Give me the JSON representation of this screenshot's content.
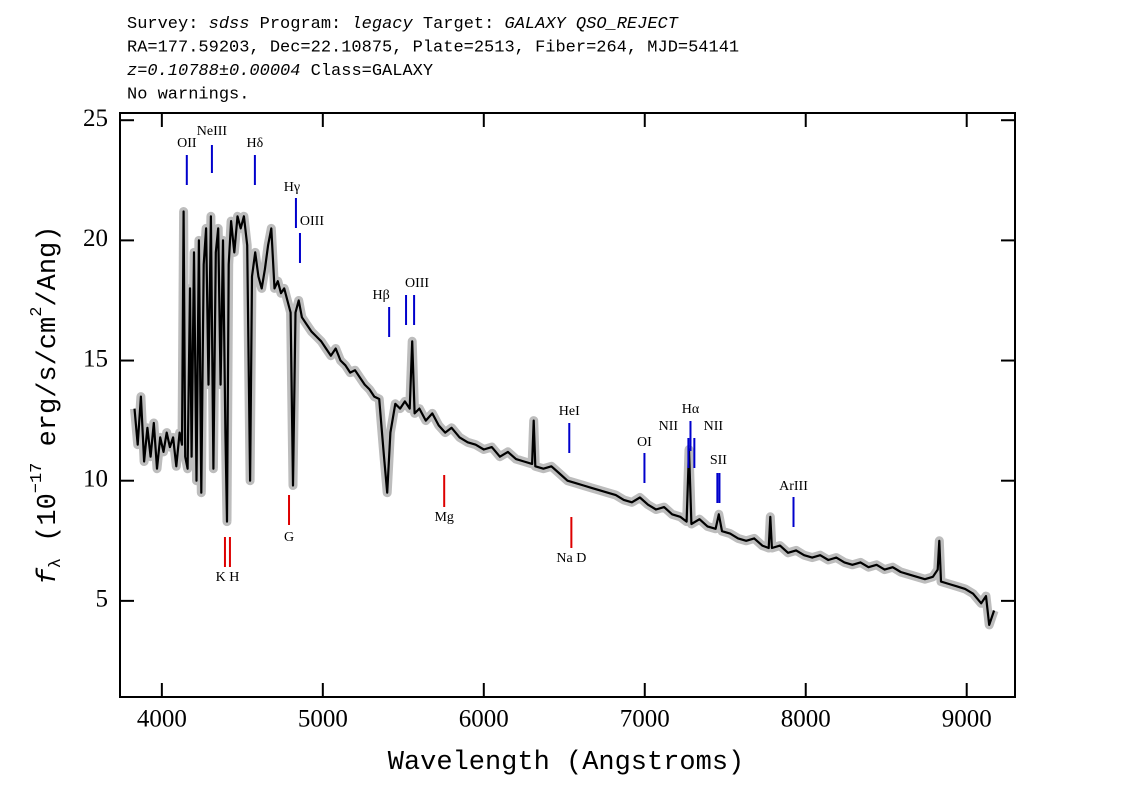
{
  "chart_data": {
    "type": "line",
    "header": [
      [
        {
          "text": "Survey: "
        },
        {
          "text": "sdss",
          "italic": true
        },
        {
          "text": " Program: "
        },
        {
          "text": "legacy",
          "italic": true
        },
        {
          "text": " Target: "
        },
        {
          "text": "GALAXY QSO_REJECT",
          "italic": true
        }
      ],
      [
        {
          "text": "RA=177.59203, Dec=22.10875, Plate=2513, Fiber=264, MJD=54141"
        }
      ],
      [
        {
          "text": "z=0.10788±0.00004",
          "italic": true
        },
        {
          "text": " Class=GALAXY"
        }
      ],
      [
        {
          "text": "No warnings."
        }
      ]
    ],
    "xlabel": "Wavelength (Angstroms)",
    "ylabel": [
      {
        "text": "f",
        "italic": true
      },
      {
        "text": "λ",
        "sub": true
      },
      {
        "text": " (10"
      },
      {
        "text": "−17",
        "sup": true
      },
      {
        "text": " erg/s/cm"
      },
      {
        "text": "2",
        "sup": true
      },
      {
        "text": "/Ang)"
      }
    ],
    "x": [
      3830,
      3850,
      3870,
      3890,
      3910,
      3930,
      3950,
      3970,
      3990,
      4010,
      4030,
      4050,
      4070,
      4090,
      4110,
      4125,
      4135,
      4145,
      4160,
      4175,
      4185,
      4200,
      4215,
      4230,
      4245,
      4260,
      4275,
      4290,
      4305,
      4320,
      4335,
      4350,
      4365,
      4380,
      4395,
      4405,
      4415,
      4430,
      4450,
      4470,
      4490,
      4510,
      4530,
      4548,
      4560,
      4580,
      4600,
      4620,
      4640,
      4660,
      4680,
      4700,
      4720,
      4740,
      4760,
      4780,
      4800,
      4815,
      4830,
      4850,
      4870,
      4900,
      4930,
      4960,
      4990,
      5020,
      5050,
      5080,
      5110,
      5140,
      5170,
      5200,
      5230,
      5260,
      5290,
      5320,
      5350,
      5380,
      5400,
      5420,
      5450,
      5480,
      5510,
      5540,
      5555,
      5570,
      5600,
      5640,
      5680,
      5720,
      5760,
      5800,
      5850,
      5900,
      5950,
      6000,
      6050,
      6100,
      6150,
      6200,
      6250,
      6300,
      6310,
      6320,
      6370,
      6420,
      6470,
      6520,
      6570,
      6620,
      6670,
      6720,
      6770,
      6820,
      6870,
      6920,
      6970,
      7020,
      7070,
      7120,
      7170,
      7220,
      7260,
      7275,
      7290,
      7340,
      7390,
      7440,
      7460,
      7480,
      7530,
      7580,
      7630,
      7680,
      7730,
      7770,
      7780,
      7790,
      7840,
      7890,
      7940,
      7990,
      8040,
      8090,
      8140,
      8190,
      8240,
      8290,
      8340,
      8390,
      8440,
      8490,
      8540,
      8590,
      8640,
      8690,
      8740,
      8790,
      8820,
      8830,
      8840,
      8890,
      8940,
      8990,
      9040,
      9090,
      9120,
      9140,
      9170
    ],
    "values": [
      13.0,
      11.5,
      13.5,
      10.8,
      12.2,
      11.0,
      12.4,
      10.5,
      11.8,
      11.2,
      12.0,
      11.4,
      11.8,
      10.6,
      12.0,
      11.5,
      21.2,
      11.0,
      10.5,
      18.0,
      11.0,
      19.5,
      10.0,
      20.0,
      9.5,
      19.0,
      20.5,
      14.0,
      21.0,
      10.5,
      19.5,
      20.5,
      14.0,
      20.0,
      12.0,
      8.3,
      19.0,
      20.8,
      19.5,
      21.0,
      20.5,
      21.0,
      19.8,
      10.0,
      18.5,
      19.5,
      18.5,
      18.0,
      18.8,
      19.8,
      20.5,
      18.0,
      18.3,
      17.8,
      18.0,
      17.5,
      17.0,
      9.8,
      17.0,
      17.5,
      16.8,
      16.5,
      16.2,
      16.0,
      15.8,
      15.5,
      15.2,
      15.5,
      15.0,
      14.8,
      14.5,
      14.6,
      14.3,
      14.0,
      13.8,
      13.5,
      13.4,
      11.0,
      9.5,
      12.0,
      13.2,
      13.0,
      13.3,
      13.0,
      15.8,
      12.8,
      13.0,
      12.5,
      12.8,
      12.3,
      12.0,
      12.2,
      11.8,
      11.6,
      11.5,
      11.3,
      11.4,
      11.0,
      11.2,
      10.9,
      10.8,
      10.7,
      12.5,
      10.6,
      10.5,
      10.6,
      10.3,
      10.0,
      9.9,
      9.8,
      9.7,
      9.6,
      9.5,
      9.4,
      9.2,
      9.1,
      9.3,
      9.0,
      8.8,
      8.9,
      8.6,
      8.5,
      8.3,
      11.3,
      8.2,
      8.4,
      8.1,
      8.0,
      8.6,
      7.9,
      7.8,
      7.6,
      7.5,
      7.6,
      7.3,
      7.2,
      8.5,
      7.2,
      7.3,
      7.0,
      7.1,
      6.9,
      6.8,
      6.9,
      6.7,
      6.8,
      6.6,
      6.5,
      6.6,
      6.4,
      6.5,
      6.3,
      6.4,
      6.2,
      6.1,
      6.0,
      5.9,
      6.0,
      6.3,
      7.5,
      5.8,
      5.7,
      5.6,
      5.5,
      5.3,
      4.9,
      5.2,
      4.0,
      4.6
    ],
    "color": "#000000",
    "noise_color": "#bdbdbd",
    "xlim": [
      3740,
      9300
    ],
    "ylim": [
      1,
      25.3
    ],
    "xticks": [
      4000,
      5000,
      6000,
      7000,
      8000,
      9000
    ],
    "yticks": [
      5,
      10,
      15,
      20,
      25
    ],
    "lines": [
      {
        "text": "OII",
        "x": [
          4155
        ],
        "color": "#0000cc"
      },
      {
        "text": "NeIII",
        "x": [
          4311
        ],
        "color": "#0000cc"
      },
      {
        "text": "Hδ",
        "x": [
          4578
        ],
        "color": "#0000cc"
      },
      {
        "text": "Hγ",
        "x": [
          4833
        ],
        "color": "#0000cc"
      },
      {
        "text": "OIII",
        "x": [
          4858
        ],
        "color": "#0000cc"
      },
      {
        "text": "Hβ",
        "x": [
          5412
        ],
        "color": "#0000cc"
      },
      {
        "text": "OIII",
        "x": [
          5517,
          5567
        ],
        "color": "#0000cc"
      },
      {
        "text": "HeI",
        "x": [
          6531
        ],
        "color": "#0000cc"
      },
      {
        "text": "OI",
        "x": [
          6998
        ],
        "color": "#0000cc"
      },
      {
        "text": "NII",
        "x": [
          7271
        ],
        "color": "#0000cc"
      },
      {
        "text": "Hα",
        "x": [
          7284
        ],
        "color": "#0000cc"
      },
      {
        "text": "NII",
        "x": [
          7308
        ],
        "color": "#0000cc"
      },
      {
        "text": "SII",
        "x": [
          7451,
          7464
        ],
        "color": "#0000cc"
      },
      {
        "text": "ArIII",
        "x": [
          7924
        ],
        "color": "#0000cc"
      },
      {
        "text": "K H",
        "x": [
          4392,
          4423
        ],
        "color": "#dd0000"
      },
      {
        "text": "G",
        "x": [
          4790
        ],
        "color": "#dd0000"
      },
      {
        "text": "Mg",
        "x": [
          5754
        ],
        "color": "#dd0000"
      },
      {
        "text": "Na D",
        "x": [
          6544
        ],
        "color": "#dd0000"
      }
    ]
  }
}
